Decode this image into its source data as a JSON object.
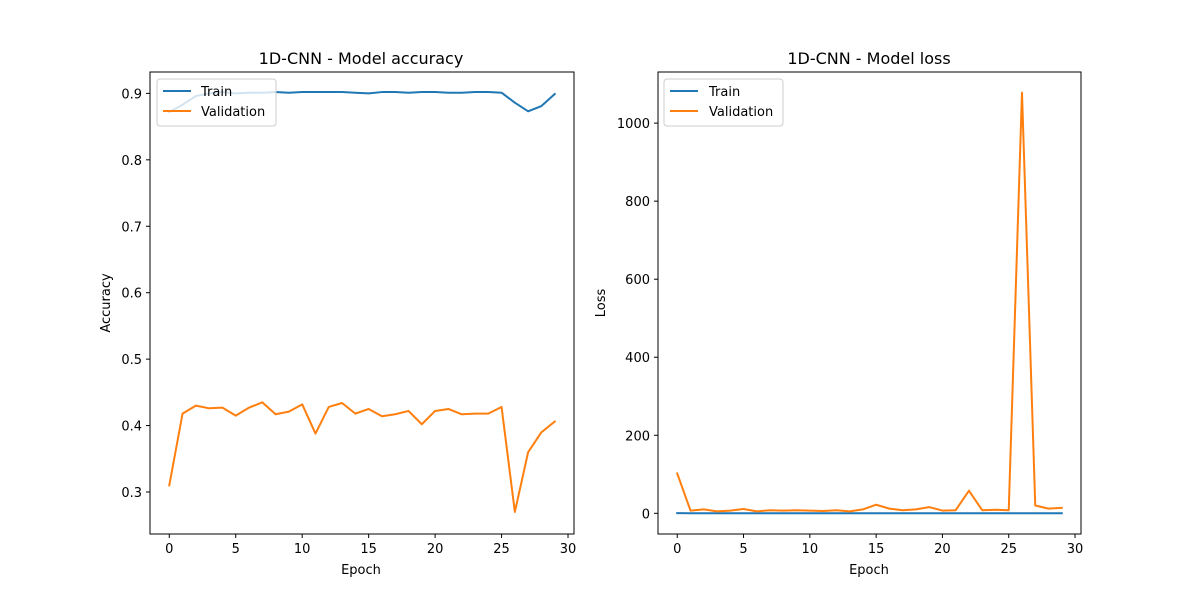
{
  "chart_data": [
    {
      "type": "line",
      "title": "1D-CNN - Model accuracy",
      "xlabel": "Epoch",
      "ylabel": "Accuracy",
      "xlim": [
        -1.45,
        30.45
      ],
      "ylim": [
        0.2368,
        0.9322
      ],
      "xticks": [
        0,
        5,
        10,
        15,
        20,
        25,
        30
      ],
      "yticks": [
        0.3,
        0.4,
        0.5,
        0.6,
        0.7,
        0.8,
        0.9
      ],
      "ytick_labels": [
        "0.3",
        "0.4",
        "0.5",
        "0.6",
        "0.7",
        "0.8",
        "0.9"
      ],
      "grid": false,
      "legend": "top-left",
      "x": [
        0,
        1,
        2,
        3,
        4,
        5,
        6,
        7,
        8,
        9,
        10,
        11,
        12,
        13,
        14,
        15,
        16,
        17,
        18,
        19,
        20,
        21,
        22,
        23,
        24,
        25,
        26,
        27,
        28,
        29
      ],
      "series": [
        {
          "name": "Train",
          "color": "#1f77b4",
          "values": [
            0.872,
            0.883,
            0.896,
            0.9,
            0.902,
            0.9,
            0.901,
            0.901,
            0.902,
            0.901,
            0.902,
            0.902,
            0.902,
            0.902,
            0.901,
            0.9,
            0.902,
            0.902,
            0.901,
            0.902,
            0.902,
            0.901,
            0.901,
            0.902,
            0.902,
            0.901,
            0.886,
            0.873,
            0.881,
            0.899
          ]
        },
        {
          "name": "Validation",
          "color": "#ff7f0e",
          "values": [
            0.31,
            0.418,
            0.43,
            0.426,
            0.427,
            0.415,
            0.427,
            0.435,
            0.417,
            0.421,
            0.432,
            0.388,
            0.428,
            0.434,
            0.418,
            0.425,
            0.414,
            0.417,
            0.422,
            0.402,
            0.422,
            0.425,
            0.417,
            0.418,
            0.418,
            0.428,
            0.27,
            0.36,
            0.39,
            0.406
          ]
        }
      ]
    },
    {
      "type": "line",
      "title": "1D-CNN - Model loss",
      "xlabel": "Epoch",
      "ylabel": "Loss",
      "xlim": [
        -1.45,
        30.45
      ],
      "ylim": [
        -53,
        1131
      ],
      "xticks": [
        0,
        5,
        10,
        15,
        20,
        25,
        30
      ],
      "yticks": [
        0,
        200,
        400,
        600,
        800,
        1000
      ],
      "ytick_labels": [
        "0",
        "200",
        "400",
        "600",
        "800",
        "1000"
      ],
      "grid": false,
      "legend": "top-left",
      "x": [
        0,
        1,
        2,
        3,
        4,
        5,
        6,
        7,
        8,
        9,
        10,
        11,
        12,
        13,
        14,
        15,
        16,
        17,
        18,
        19,
        20,
        21,
        22,
        23,
        24,
        25,
        26,
        27,
        28,
        29
      ],
      "series": [
        {
          "name": "Train",
          "color": "#1f77b4",
          "values": [
            0.35,
            0.3,
            0.3,
            0.3,
            0.3,
            0.3,
            0.3,
            0.3,
            0.3,
            0.3,
            0.3,
            0.3,
            0.3,
            0.3,
            0.3,
            0.3,
            0.3,
            0.3,
            0.3,
            0.3,
            0.3,
            0.3,
            0.3,
            0.3,
            0.3,
            0.3,
            0.3,
            0.3,
            0.3,
            0.3
          ]
        },
        {
          "name": "Validation",
          "color": "#ff7f0e",
          "values": [
            102,
            7,
            10,
            5,
            7,
            11,
            5,
            8,
            7,
            8,
            7,
            6,
            8,
            5,
            10,
            22,
            12,
            8,
            10,
            16,
            7,
            8,
            58,
            8,
            9,
            8,
            1078,
            20,
            12,
            14
          ]
        }
      ]
    }
  ]
}
